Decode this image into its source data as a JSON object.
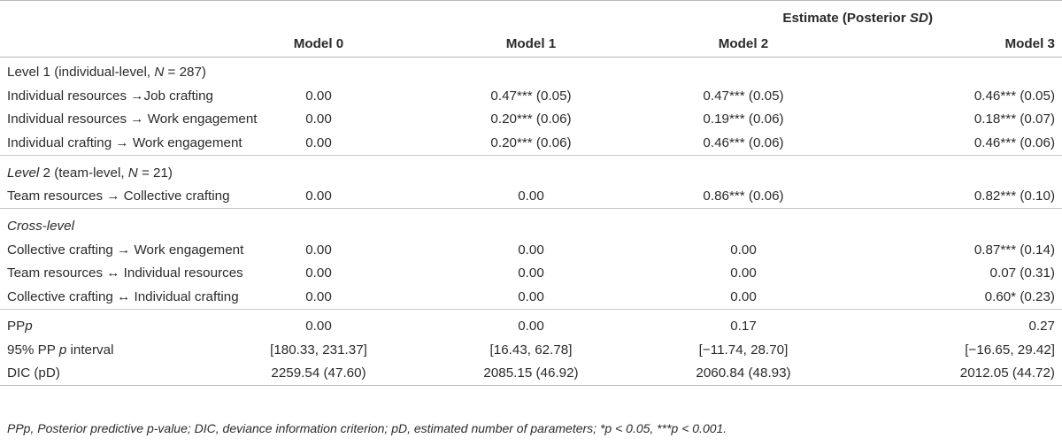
{
  "header": {
    "super": "Estimate (Posterior SD)",
    "super_plain": "Estimate (Posterior ",
    "super_ital": "SD",
    "super_close": ")",
    "models": [
      "Model 0",
      "Model 1",
      "Model 2",
      "Model 3"
    ]
  },
  "sections": {
    "level1": {
      "label": "Level 1 (individual-level, N = 287)"
    },
    "level2": {
      "label": "Level 2 (team-level, N = 21)"
    },
    "cross": {
      "label": "Cross-level"
    }
  },
  "rows": [
    {
      "label": "Individual resources →Job crafting",
      "values": [
        "0.00",
        "0.47*** (0.05)",
        "0.47*** (0.05)",
        "0.46*** (0.05)"
      ]
    },
    {
      "label": "Individual resources → Work engagement",
      "values": [
        "0.00",
        "0.20*** (0.06)",
        "0.19*** (0.06)",
        "0.18*** (0.07)"
      ]
    },
    {
      "label": "Individual crafting → Work engagement",
      "values": [
        "0.00",
        "0.20*** (0.06)",
        "0.46*** (0.06)",
        "0.46*** (0.06)"
      ]
    },
    {
      "label": "Team resources → Collective crafting",
      "values": [
        "0.00",
        "0.00",
        "0.86*** (0.06)",
        "0.82*** (0.10)"
      ]
    },
    {
      "label": "Collective crafting → Work engagement",
      "values": [
        "0.00",
        "0.00",
        "0.00",
        "0.87*** (0.14)"
      ]
    },
    {
      "label": "Team resources ↔ Individual resources",
      "values": [
        "0.00",
        "0.00",
        "0.00",
        "0.07 (0.31)"
      ]
    },
    {
      "label": "Collective crafting ↔ Individual crafting",
      "values": [
        "0.00",
        "0.00",
        "0.00",
        "0.60* (0.23)"
      ]
    },
    {
      "label": "PPp",
      "values": [
        "0.00",
        "0.00",
        "0.17",
        "0.27"
      ]
    },
    {
      "label": "95% PP p interval",
      "values": [
        "[180.33, 231.37]",
        "[16.43, 62.78]",
        "[−11.74, 28.70]",
        "[−16.65, 29.42]"
      ]
    },
    {
      "label": "DIC (pD)",
      "values": [
        "2259.54 (47.60)",
        "2085.15 (46.92)",
        "2060.84 (48.93)",
        "2012.05 (44.72)"
      ]
    }
  ],
  "footnote": "PPp, Posterior predictive p-value; DIC, deviance information criterion; pD, estimated number of parameters; *p < 0.05, ***p < 0.001."
}
